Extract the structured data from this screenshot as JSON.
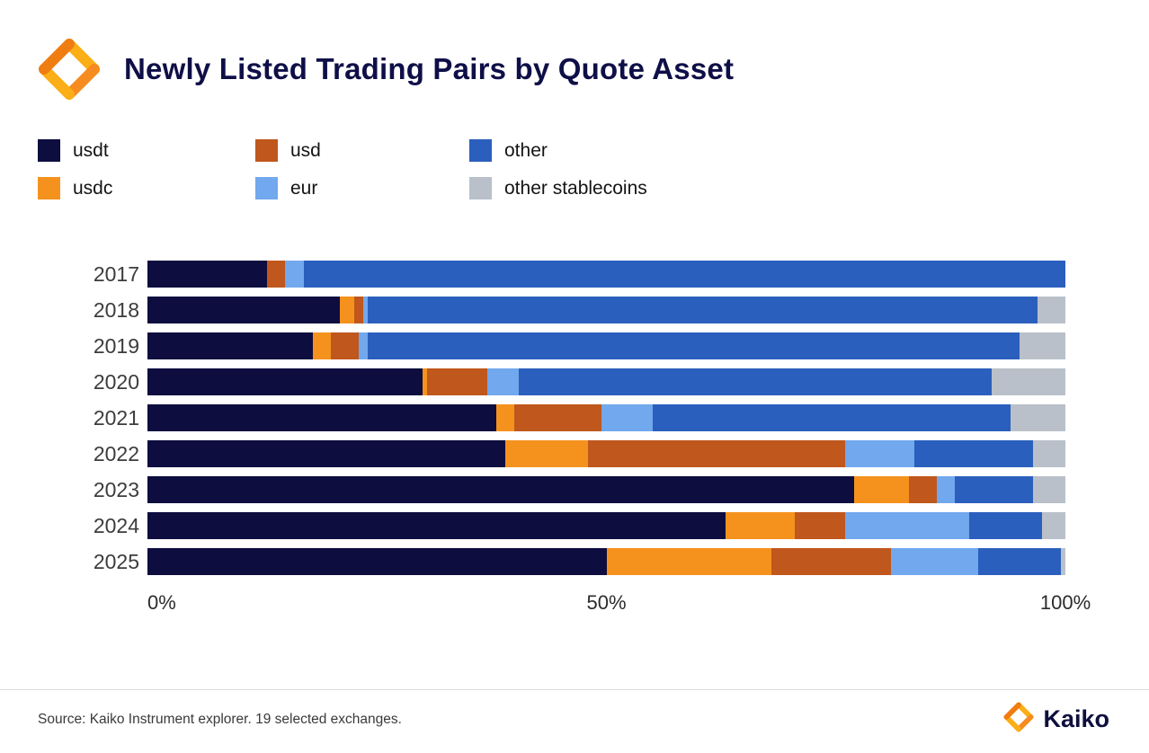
{
  "header": {
    "title": "Newly Listed Trading Pairs by Quote Asset"
  },
  "legend": {
    "items": [
      {
        "label": "usdt",
        "color": "#0d0d40"
      },
      {
        "label": "usdc",
        "color": "#f5921e"
      },
      {
        "label": "usd",
        "color": "#c0571c"
      },
      {
        "label": "eur",
        "color": "#71a8ee"
      },
      {
        "label": "other",
        "color": "#2b5fbd"
      },
      {
        "label": "other stablecoins",
        "color": "#b9c0c9"
      }
    ]
  },
  "chart_data": {
    "type": "bar",
    "orientation": "horizontal",
    "stacked": true,
    "title": "Newly Listed Trading Pairs by Quote Asset",
    "categories": [
      "2017",
      "2018",
      "2019",
      "2020",
      "2021",
      "2022",
      "2023",
      "2024",
      "2025"
    ],
    "series": [
      {
        "name": "usdt",
        "color": "#0d0d40",
        "values": [
          13,
          21,
          18,
          30,
          38,
          39,
          77,
          63,
          50
        ]
      },
      {
        "name": "usdc",
        "color": "#f5921e",
        "values": [
          0,
          1.5,
          2,
          0.5,
          2,
          9,
          6,
          7.5,
          18
        ]
      },
      {
        "name": "usd",
        "color": "#c0571c",
        "values": [
          2,
          1,
          3,
          6.5,
          9.5,
          28,
          3,
          5.5,
          13
        ]
      },
      {
        "name": "eur",
        "color": "#71a8ee",
        "values": [
          2,
          0.5,
          1,
          3.5,
          5.5,
          7.5,
          2,
          13.5,
          9.5
        ]
      },
      {
        "name": "other",
        "color": "#2b5fbd",
        "values": [
          83,
          73,
          71,
          51.5,
          39,
          13,
          8.5,
          8,
          9
        ]
      },
      {
        "name": "other stablecoins",
        "color": "#b9c0c9",
        "values": [
          0,
          3,
          5,
          8,
          6,
          3.5,
          3.5,
          2.5,
          0.5
        ]
      }
    ],
    "xlim": [
      0,
      100
    ],
    "ticks": [
      {
        "label": "0%",
        "value": 0
      },
      {
        "label": "50%",
        "value": 50
      },
      {
        "label": "100%",
        "value": 100
      }
    ],
    "legend_position": "top",
    "grid": false,
    "unit": "percent"
  },
  "footer": {
    "source": "Source: Kaiko Instrument explorer. 19 selected exchanges.",
    "brand": "Kaiko"
  }
}
